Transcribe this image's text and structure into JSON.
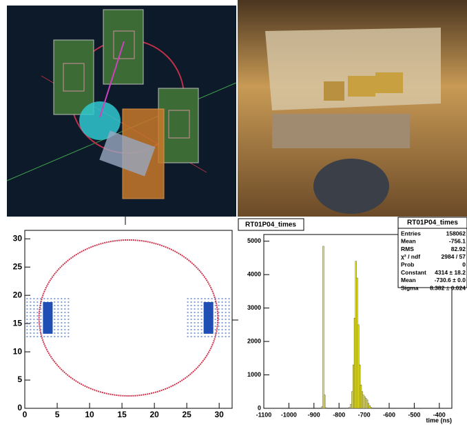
{
  "chart_data": [
    {
      "type": "ring",
      "xlim": [
        0,
        32
      ],
      "ylim": [
        0,
        31.5
      ],
      "xticks": [
        0,
        5,
        10,
        15,
        20,
        25,
        30
      ],
      "yticks": [
        0,
        5,
        10,
        15,
        20,
        25,
        30
      ],
      "ring": {
        "cx": 16,
        "cy": 16,
        "r": 13.8,
        "color": "#d0304a"
      },
      "clusters": [
        {
          "x": 2.8,
          "y": 13.2,
          "width": 1.5,
          "height": 5.6,
          "color": "#1f4fb5"
        },
        {
          "x": 27.6,
          "y": 13.2,
          "width": 1.5,
          "height": 5.6,
          "color": "#1f4fb5"
        }
      ]
    },
    {
      "type": "histogram",
      "title": "RT01P04_times",
      "xlabel": "time (ns)",
      "xlim": [
        -1100,
        -350
      ],
      "ylim": [
        0,
        5200
      ],
      "xticks": [
        -1100,
        -1000,
        -900,
        -800,
        -700,
        -600,
        -500,
        -400
      ],
      "yticks": [
        0,
        1000,
        2000,
        3000,
        4000,
        5000
      ],
      "color": "#f0ec2a",
      "bins": [
        -880,
        -875,
        -870,
        -865,
        -860,
        -855,
        -850,
        -845,
        -840,
        -835,
        -830,
        -825,
        -820,
        -815,
        -810,
        -805,
        -800,
        -795,
        -790,
        -785,
        -780,
        -775,
        -770,
        -765,
        -760,
        -755,
        -750,
        -745,
        -740,
        -735,
        -730,
        -725,
        -720,
        -715,
        -710,
        -705,
        -700,
        -695,
        -690,
        -685,
        -680,
        -675,
        -670,
        -665
      ],
      "values": [
        0,
        0,
        50,
        4850,
        400,
        20,
        0,
        0,
        0,
        0,
        0,
        0,
        0,
        0,
        0,
        0,
        0,
        0,
        0,
        0,
        0,
        0,
        0,
        0,
        30,
        120,
        500,
        1300,
        2700,
        4400,
        3900,
        2500,
        1300,
        700,
        500,
        400,
        350,
        300,
        250,
        150,
        80,
        30,
        10
      ],
      "stats": {
        "title": "RT01P04_times",
        "rows": [
          [
            "Entries",
            "158062"
          ],
          [
            "Mean",
            "-756.1"
          ],
          [
            "RMS",
            "82.92"
          ],
          [
            "χ² / ndf",
            "2984 / 57"
          ],
          [
            "Prob",
            "0"
          ],
          [
            "Constant",
            "4314 ± 18.2"
          ],
          [
            "Mean",
            "-730.6 ± 0.0"
          ],
          [
            "Sigma",
            "8.382 ± 0.024"
          ]
        ]
      }
    }
  ]
}
